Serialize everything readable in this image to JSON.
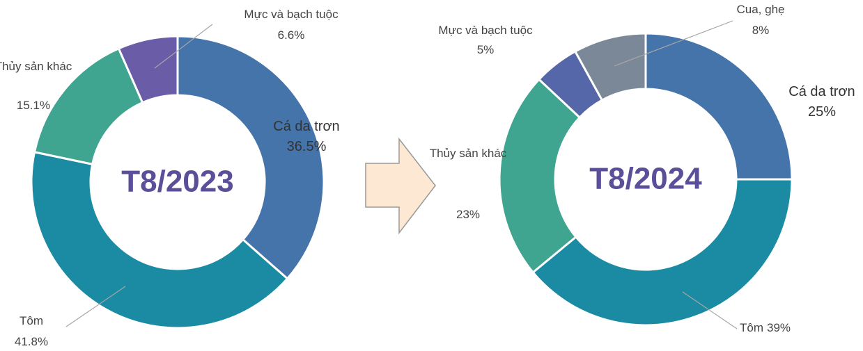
{
  "chart_data": [
    {
      "type": "donut",
      "center_label": "T8/2023",
      "categories": [
        "Cá da trơn",
        "Tôm",
        "Thủy sản khác",
        "Mực và bạch tuộc"
      ],
      "values": [
        36.5,
        41.8,
        15.1,
        6.6
      ],
      "value_labels": [
        "36.5%",
        "41.8%",
        "15.1%",
        "6.6%"
      ],
      "colors": [
        "#4474a9",
        "#1a8ba2",
        "#40a590",
        "#6a5ca7"
      ]
    },
    {
      "type": "donut",
      "center_label": "T8/2024",
      "categories": [
        "Cá da trơn",
        "Tôm",
        "Thủy sản khác",
        "Mực và bạch tuộc",
        "Cua, ghẹ"
      ],
      "values": [
        25,
        39,
        23,
        5,
        8
      ],
      "value_labels": [
        "25%",
        "39%",
        "23%",
        "5%",
        "8%"
      ],
      "colors": [
        "#4474a9",
        "#1a8ba2",
        "#40a590",
        "#5566a9",
        "#7a8898"
      ]
    }
  ]
}
